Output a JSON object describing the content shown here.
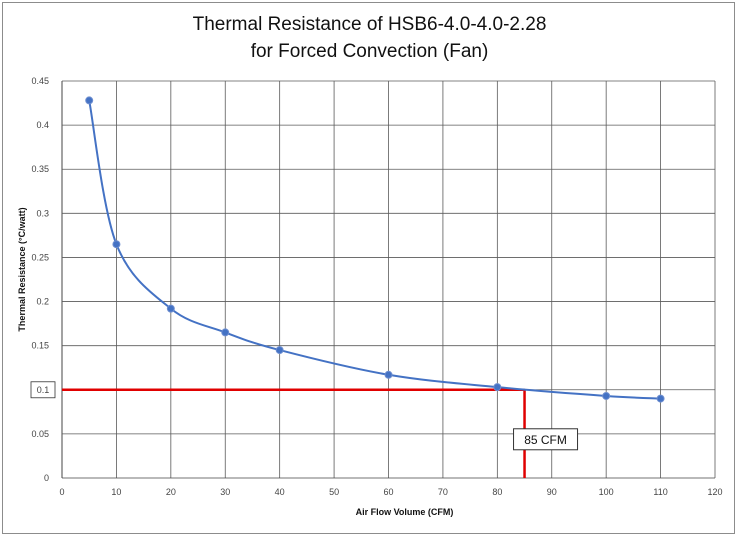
{
  "chart_data": {
    "type": "line",
    "title": "Thermal Resistance of HSB6-4.0-4.0-2.28",
    "subtitle": "for Forced Convection (Fan)",
    "xlabel": "Air Flow Volume (CFM)",
    "ylabel": "Thermal Resistance (°C/watt)",
    "xlim": [
      0,
      120
    ],
    "ylim": [
      0,
      0.45
    ],
    "x_ticks": [
      "0",
      "10",
      "20",
      "30",
      "40",
      "50",
      "60",
      "70",
      "80",
      "90",
      "100",
      "110",
      "120"
    ],
    "y_ticks": [
      "0",
      "0.05",
      "0.1",
      "0.15",
      "0.2",
      "0.25",
      "0.3",
      "0.35",
      "0.4",
      "0.45"
    ],
    "grid": true,
    "series": [
      {
        "x": [
          5,
          10,
          20,
          30,
          40,
          60,
          80,
          100,
          110
        ],
        "y": [
          0.428,
          0.265,
          0.192,
          0.165,
          0.145,
          0.117,
          0.103,
          0.093,
          0.09
        ],
        "color": "#4472c4"
      }
    ],
    "reference": {
      "x": 85,
      "y": 0.1,
      "color": "#e00000",
      "y_label": "0.1",
      "callout": "85 CFM"
    }
  }
}
